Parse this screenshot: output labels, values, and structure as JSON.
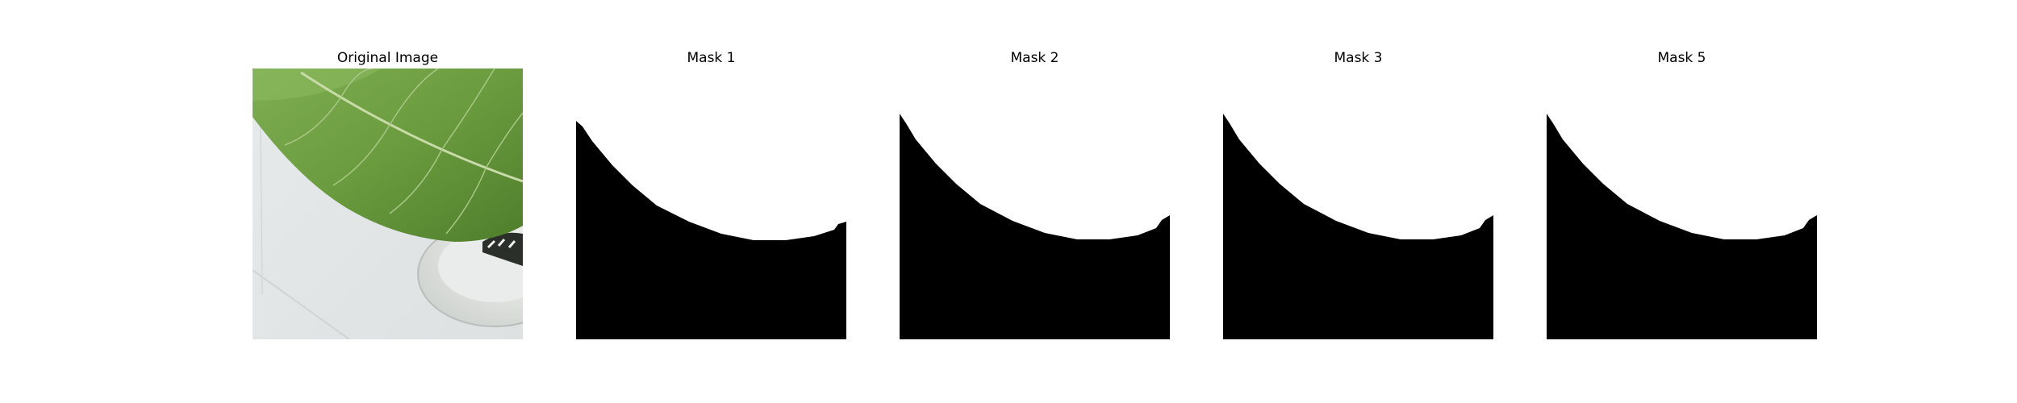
{
  "figure": {
    "panels": [
      {
        "id": "original",
        "title": "Original Image",
        "kind": "photo"
      },
      {
        "id": "mask1",
        "title": "Mask 1",
        "kind": "mask",
        "fill_color": "#000000",
        "background_color": "#ffffff"
      },
      {
        "id": "mask2",
        "title": "Mask 2",
        "kind": "mask",
        "fill_color": "#000000",
        "background_color": "#ffffff"
      },
      {
        "id": "mask3",
        "title": "Mask 3",
        "kind": "mask",
        "fill_color": "#000000",
        "background_color": "#ffffff"
      },
      {
        "id": "mask5",
        "title": "Mask 5",
        "kind": "mask",
        "fill_color": "#000000",
        "background_color": "#ffffff"
      }
    ]
  }
}
